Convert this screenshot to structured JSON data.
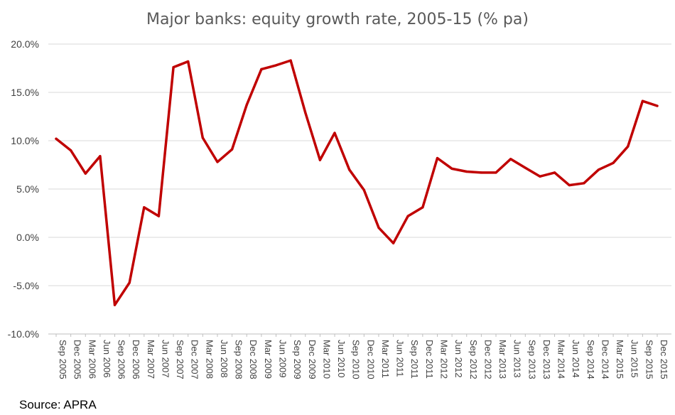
{
  "chart_data": {
    "type": "line",
    "title": "Major banks: equity growth rate, 2005-15 (% pa)",
    "xlabel": "",
    "ylabel": "",
    "ylim": [
      -10,
      20
    ],
    "ytick_values": [
      -10,
      -5,
      0,
      5,
      10,
      15,
      20
    ],
    "ytick_labels": [
      "-10.0%",
      "-5.0%",
      "0.0%",
      "5.0%",
      "10.0%",
      "15.0%",
      "20.0%"
    ],
    "grid": true,
    "legend": "none",
    "categories": [
      "Sep 2005",
      "Dec 2005",
      "Mar 2006",
      "Jun 2006",
      "Sep 2006",
      "Dec 2006",
      "Mar 2007",
      "Jun 2007",
      "Sep 2007",
      "Dec 2007",
      "Mar 2008",
      "Jun 2008",
      "Sep 2008",
      "Dec 2008",
      "Mar 2009",
      "Jun 2009",
      "Sep 2009",
      "Dec 2009",
      "Mar 2010",
      "Jun 2010",
      "Sep 2010",
      "Dec 2010",
      "Mar 2011",
      "Jun 2011",
      "Sep 2011",
      "Dec 2011",
      "Mar 2012",
      "Jun 2012",
      "Sep 2012",
      "Dec 2012",
      "Mar 2013",
      "Jun 2013",
      "Sep 2013",
      "Dec 2013",
      "Mar 2014",
      "Jun 2014",
      "Sep 2014",
      "Dec 2014",
      "Mar 2015",
      "Jun 2015",
      "Sep 2015",
      "Dec 2015"
    ],
    "series": [
      {
        "color": "#c00000",
        "values": [
          10.2,
          9.0,
          6.6,
          8.4,
          -7.0,
          -4.7,
          3.1,
          2.2,
          17.6,
          18.2,
          10.3,
          7.8,
          9.1,
          13.7,
          17.4,
          17.8,
          18.3,
          12.9,
          8.0,
          10.8,
          7.0,
          4.9,
          1.0,
          -0.6,
          2.2,
          3.1,
          8.2,
          7.1,
          6.8,
          6.7,
          6.7,
          8.1,
          7.2,
          6.3,
          6.7,
          5.4,
          5.6,
          7.0,
          7.7,
          9.4,
          14.1,
          13.6
        ]
      }
    ]
  },
  "source": "Source: APRA"
}
